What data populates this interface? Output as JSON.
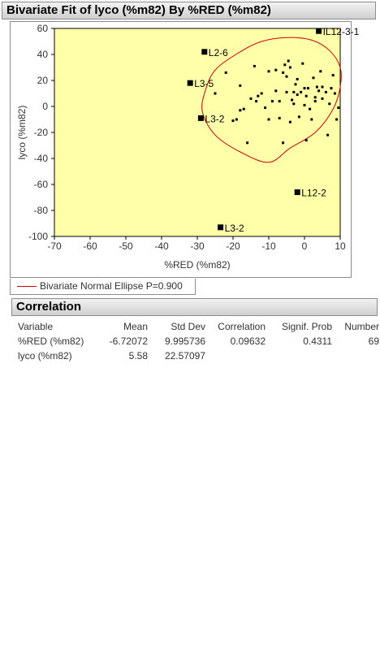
{
  "header1": {
    "title": "Bivariate Fit of lyco (%m82) By %RED (%m82)"
  },
  "header2": {
    "title": "Correlation"
  },
  "legend": {
    "label": "Bivariate Normal Ellipse P=0.900",
    "color": "#d00000"
  },
  "colors": {
    "plot_background": "#ffffaa",
    "ellipse": "#d00000",
    "points": "#000000"
  },
  "chart_data": {
    "type": "scatter",
    "title": "Bivariate Fit of lyco (%m82) By %RED (%m82)",
    "xlabel": "%RED (%m82)",
    "ylabel": "lyco (%m82)",
    "xlim": [
      -70,
      10
    ],
    "ylim": [
      -100,
      60
    ],
    "xticks": [
      -70,
      -60,
      -50,
      -40,
      -30,
      -20,
      -10,
      0,
      10
    ],
    "yticks": [
      -100,
      -80,
      -60,
      -40,
      -20,
      0,
      20,
      40,
      60
    ],
    "xtick_labels": [
      "-70",
      "-60",
      "-50",
      "-40",
      "-30",
      "-20",
      "-10",
      "0",
      "10"
    ],
    "ytick_labels": [
      "-100",
      "-80",
      "-60",
      "-40",
      "-20",
      "0",
      "20",
      "40",
      "60"
    ],
    "grid": false,
    "legend_position": "bottom-left",
    "ellipse": {
      "label": "Bivariate Normal Ellipse P=0.900",
      "points": [
        [
          -5,
          53
        ],
        [
          2,
          51
        ],
        [
          7,
          43
        ],
        [
          10,
          30
        ],
        [
          10,
          15
        ],
        [
          8,
          -2
        ],
        [
          3,
          -20
        ],
        [
          -4,
          -32
        ],
        [
          -10,
          -43
        ],
        [
          -18,
          -35
        ],
        [
          -25,
          -22
        ],
        [
          -28.5,
          -5
        ],
        [
          -28,
          10
        ],
        [
          -25,
          28
        ],
        [
          -18,
          42
        ],
        [
          -12,
          50
        ],
        [
          -5,
          53
        ]
      ]
    },
    "labeled_points": [
      {
        "x": 4,
        "y": 58,
        "label": "IL12-3-1"
      },
      {
        "x": -28,
        "y": 42,
        "label": "L2-6"
      },
      {
        "x": -32,
        "y": 18,
        "label": "L3-5"
      },
      {
        "x": -29,
        "y": -9,
        "label": "L3-2"
      },
      {
        "x": -2,
        "y": -66,
        "label": "L12-2"
      },
      {
        "x": -23.5,
        "y": -93,
        "label": "L3-2"
      }
    ],
    "points": [
      [
        -25,
        10
      ],
      [
        -22,
        26
      ],
      [
        -20,
        -11
      ],
      [
        -19,
        -10
      ],
      [
        -18,
        16
      ],
      [
        -18,
        -3
      ],
      [
        -17,
        -2
      ],
      [
        -16,
        -28
      ],
      [
        -15,
        6
      ],
      [
        -14,
        31
      ],
      [
        -13.5,
        4
      ],
      [
        -13,
        8
      ],
      [
        -12,
        10
      ],
      [
        -11,
        -1
      ],
      [
        -10,
        27
      ],
      [
        -10,
        -10
      ],
      [
        -9,
        4
      ],
      [
        -8,
        28
      ],
      [
        -7,
        -9
      ],
      [
        -7,
        4
      ],
      [
        -6,
        26
      ],
      [
        -5.5,
        32
      ],
      [
        -5,
        11
      ],
      [
        -5,
        23
      ],
      [
        -4.5,
        35
      ],
      [
        -4,
        30
      ],
      [
        -4,
        -12
      ],
      [
        -3.5,
        5
      ],
      [
        -3,
        2
      ],
      [
        -2.5,
        17
      ],
      [
        -2,
        9
      ],
      [
        -2,
        21
      ],
      [
        -1.5,
        -8
      ],
      [
        -1,
        11
      ],
      [
        -0.5,
        33
      ],
      [
        0,
        14
      ],
      [
        0,
        1
      ],
      [
        0.5,
        8
      ],
      [
        0.5,
        -26
      ],
      [
        1,
        14
      ],
      [
        1.5,
        -2
      ],
      [
        2,
        -10
      ],
      [
        2.5,
        22
      ],
      [
        3,
        4
      ],
      [
        3,
        7
      ],
      [
        3.5,
        15
      ],
      [
        4,
        12
      ],
      [
        4.5,
        27
      ],
      [
        5,
        15
      ],
      [
        5,
        6
      ],
      [
        6,
        11
      ],
      [
        6.5,
        -22
      ],
      [
        7,
        2
      ],
      [
        7.5,
        14
      ],
      [
        8,
        24
      ],
      [
        8.5,
        10
      ],
      [
        9,
        -10
      ],
      [
        9.5,
        -1
      ],
      [
        -6,
        -28
      ],
      [
        -3,
        11
      ],
      [
        -8,
        12
      ]
    ]
  },
  "correlation_table": {
    "headers": {
      "variable": "Variable",
      "mean": "Mean",
      "std_dev": "Std Dev",
      "correlation": "Correlation",
      "signif_prob": "Signif. Prob",
      "number": "Number"
    },
    "rows": [
      {
        "variable": "%RED (%m82)",
        "mean": "-6.72072",
        "std_dev": "9.995736",
        "correlation": "0.09632",
        "signif_prob": "0.4311",
        "number": "69"
      },
      {
        "variable": "lyco (%m82)",
        "mean": "5.58",
        "std_dev": "22.57097",
        "correlation": "",
        "signif_prob": "",
        "number": ""
      }
    ]
  }
}
